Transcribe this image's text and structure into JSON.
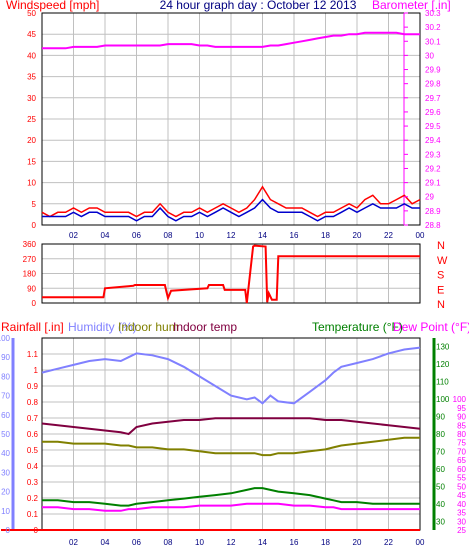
{
  "title": "24 hour graph day : October 12 2013",
  "x_tick_labels": [
    "02",
    "04",
    "06",
    "08",
    "10",
    "12",
    "14",
    "16",
    "18",
    "20",
    "22",
    "00"
  ],
  "colors": {
    "frame": "#000000",
    "grid": "#c0c0c0",
    "wind": "#ff0000",
    "gust": "#0000cc",
    "baro": "#ff00ff",
    "direction": "#ff0000",
    "rain": "#ff0000",
    "humidity": "#8080ff",
    "indoor_hum": "#808000",
    "indoor_temp": "#800040",
    "temperature": "#008000",
    "dew_point": "#ff00ff",
    "highlight": "#ffff00",
    "title": "#000080"
  },
  "chart_data": [
    {
      "type": "line",
      "title": "24 hour graph day : October 12 2013",
      "left_axis_label": "Windspeed [mph]",
      "right_axis_label": "Barometer [.in]",
      "x": [
        0,
        0.5,
        1,
        1.5,
        2,
        2.5,
        3,
        3.5,
        4,
        4.5,
        5,
        5.5,
        6,
        6.5,
        7,
        7.5,
        8,
        8.5,
        9,
        9.5,
        10,
        10.5,
        11,
        11.5,
        12,
        12.5,
        13,
        13.5,
        14,
        14.5,
        15,
        15.5,
        16,
        16.5,
        17,
        17.5,
        18,
        18.5,
        19,
        19.5,
        20,
        20.5,
        21,
        21.5,
        22,
        22.5,
        23,
        23.5,
        24
      ],
      "ylim": [
        0,
        50
      ],
      "yticks": [
        0,
        5,
        10,
        15,
        20,
        25,
        30,
        35,
        40,
        45,
        50
      ],
      "y2lim": [
        28.8,
        30.3
      ],
      "y2ticks": [
        "28.8",
        "28.9",
        "29",
        "29.1",
        "29.2",
        "29.3",
        "29.4",
        "29.5",
        "29.6",
        "29.7",
        "29.8",
        "29.9",
        "30",
        "30.1",
        "30.2",
        "30.3"
      ],
      "series": [
        {
          "key": "wind",
          "axis": "left",
          "values": [
            3,
            2,
            3,
            3,
            4,
            3,
            4,
            4,
            3,
            3,
            3,
            3,
            2,
            3,
            3,
            5,
            3,
            2,
            3,
            3,
            4,
            3,
            4,
            5,
            4,
            3,
            4,
            6,
            9,
            6,
            5,
            4,
            4,
            4,
            3,
            2,
            3,
            3,
            4,
            5,
            4,
            6,
            7,
            5,
            5,
            6,
            7,
            5,
            6
          ]
        },
        {
          "key": "gust",
          "axis": "left",
          "values": [
            2,
            2,
            2,
            2,
            3,
            2,
            3,
            3,
            2,
            2,
            2,
            2,
            1,
            2,
            2,
            4,
            2,
            1,
            2,
            2,
            3,
            2,
            3,
            4,
            3,
            2,
            3,
            4,
            6,
            4,
            3,
            3,
            3,
            3,
            2,
            1,
            2,
            2,
            3,
            4,
            3,
            4,
            5,
            4,
            4,
            4,
            5,
            4,
            4
          ]
        },
        {
          "key": "baro",
          "axis": "right",
          "values": [
            30.05,
            30.05,
            30.05,
            30.05,
            30.06,
            30.06,
            30.06,
            30.06,
            30.07,
            30.07,
            30.07,
            30.07,
            30.07,
            30.07,
            30.07,
            30.07,
            30.08,
            30.08,
            30.08,
            30.08,
            30.07,
            30.07,
            30.06,
            30.06,
            30.06,
            30.06,
            30.06,
            30.06,
            30.06,
            30.07,
            30.07,
            30.08,
            30.09,
            30.1,
            30.11,
            30.12,
            30.13,
            30.14,
            30.14,
            30.15,
            30.15,
            30.16,
            30.16,
            30.16,
            30.16,
            30.16,
            30.15,
            30.15,
            30.15
          ]
        }
      ]
    },
    {
      "type": "line",
      "right_axis_labels": [
        "N",
        "W",
        "S",
        "E",
        "N"
      ],
      "ylim": [
        0,
        360
      ],
      "yticks": [
        0,
        90,
        180,
        270,
        360
      ],
      "x": [
        0,
        3.9,
        4,
        5.8,
        5.9,
        7.8,
        7.9,
        8,
        8.2,
        10.5,
        10.6,
        11.5,
        11.6,
        12.9,
        13,
        13.4,
        13.5,
        14.2,
        14.3,
        14.4,
        14.6,
        14.9,
        15,
        24
      ],
      "values": [
        35,
        35,
        90,
        105,
        110,
        110,
        70,
        30,
        75,
        90,
        110,
        110,
        80,
        80,
        0,
        345,
        350,
        345,
        5,
        60,
        20,
        20,
        285,
        285
      ]
    },
    {
      "type": "line",
      "labels": {
        "rain": "Rainfall [.in]",
        "humidity": "Humidity (%)",
        "indoor_hum": "Indoor hum",
        "indoor_temp": "Indoor temp",
        "temperature": "Temperature (°F)",
        "dew_point": "Dew Point (°F)"
      },
      "x": [
        0,
        1,
        2,
        3,
        4,
        5,
        5.5,
        6,
        7,
        8,
        9,
        10,
        11,
        12,
        13,
        13.5,
        14,
        14.5,
        15,
        16,
        17,
        18,
        18.5,
        19,
        20,
        21,
        22,
        23,
        24
      ],
      "rain_ylim": [
        0,
        1.2
      ],
      "rain_yticks": [
        "0",
        "0.1",
        "0.2",
        "0.3",
        "0.4",
        "0.5",
        "0.6",
        "0.7",
        "0.8",
        "0.9",
        "1",
        "1.1"
      ],
      "humidity_ylim": [
        0,
        100
      ],
      "humidity_yticks": [
        0,
        10,
        20,
        30,
        40,
        50,
        60,
        70,
        80,
        90,
        100
      ],
      "temp_ylim": [
        25,
        135
      ],
      "temp_yticks": [
        30,
        40,
        50,
        60,
        70,
        80,
        90,
        100,
        110,
        120,
        130
      ],
      "dew_yticks": [
        25,
        30,
        35,
        40,
        45,
        50,
        55,
        60,
        65,
        70,
        75,
        80,
        85,
        90,
        95,
        100
      ],
      "series": [
        {
          "key": "humidity",
          "axis": "humidity",
          "values": [
            82,
            84,
            86,
            88,
            89,
            88,
            90,
            92,
            91,
            89,
            85,
            80,
            75,
            70,
            68,
            69,
            66,
            70,
            67,
            66,
            72,
            78,
            82,
            85,
            87,
            89,
            92,
            94,
            95
          ]
        },
        {
          "key": "indoor_hum",
          "axis": "humidity",
          "values": [
            46,
            46,
            45,
            45,
            45,
            44,
            44,
            43,
            43,
            42,
            42,
            41,
            40,
            40,
            40,
            40,
            39,
            39,
            40,
            40,
            41,
            42,
            43,
            44,
            45,
            46,
            47,
            48,
            48
          ]
        },
        {
          "key": "indoor_temp",
          "axis": "temp",
          "values": [
            86,
            85,
            84,
            83,
            82,
            81,
            80,
            84,
            86,
            87,
            88,
            88,
            89,
            89,
            89,
            89,
            89,
            89,
            89,
            89,
            89,
            88,
            88,
            88,
            87,
            86,
            85,
            84,
            83
          ]
        },
        {
          "key": "temperature",
          "axis": "temp",
          "values": [
            42,
            42,
            41,
            41,
            40,
            39,
            39,
            40,
            41,
            42,
            43,
            44,
            45,
            46,
            48,
            49,
            49,
            48,
            47,
            46,
            45,
            43,
            42,
            41,
            41,
            40,
            40,
            40,
            40
          ]
        },
        {
          "key": "dew_point",
          "axis": "temp",
          "values": [
            38,
            38,
            37,
            37,
            36,
            36,
            37,
            37,
            38,
            38,
            38,
            39,
            39,
            39,
            40,
            40,
            40,
            40,
            40,
            39,
            39,
            38,
            38,
            37,
            37,
            37,
            37,
            37,
            37
          ]
        },
        {
          "key": "rain",
          "axis": "rain",
          "values": [
            0,
            0,
            0,
            0,
            0,
            0,
            0,
            0,
            0,
            0,
            0,
            0,
            0,
            0,
            0,
            0,
            0,
            0,
            0,
            0,
            0,
            0,
            0,
            0,
            0,
            0,
            0,
            0,
            0
          ]
        }
      ]
    }
  ]
}
